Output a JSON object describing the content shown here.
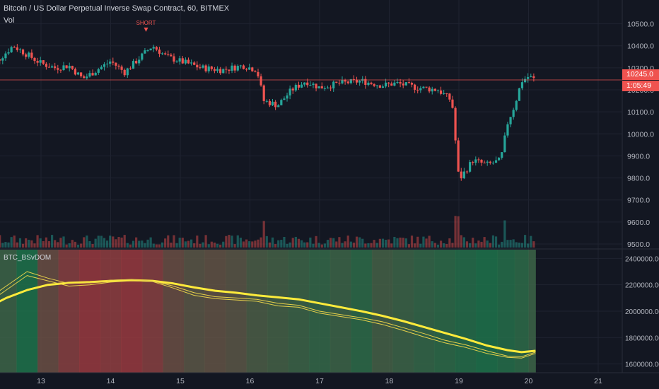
{
  "header": {
    "symbol_title": "Bitcoin / US Dollar Perpetual Inverse Swap Contract, 60, BITMEX",
    "volume_label": "Vol",
    "indicator_label": "BTC_BSvDOM"
  },
  "signal": {
    "label": "SHORT",
    "at": "14",
    "price": 10430
  },
  "price_tag": {
    "value": "10245.0",
    "countdown": "1:05:49"
  },
  "colors": {
    "background": "#131722",
    "grid": "#1f2330",
    "up": "#26a69a",
    "down": "#ef5350",
    "text": "#b2b5be",
    "fast_line": "#ffeb3b",
    "slow_line": "#e6d04a",
    "heat_red": "#a8333f",
    "heat_green": "#0f7a4c"
  },
  "chart_data": [
    {
      "type": "candlestick",
      "name": "price",
      "ylim": [
        9500,
        10550
      ],
      "y_ticks": [
        9500,
        9600,
        9700,
        9800,
        9900,
        10000,
        10100,
        10200,
        10300,
        10400,
        10500
      ],
      "x_ticks": [
        "13",
        "14",
        "15",
        "16",
        "17",
        "18",
        "19",
        "20",
        "21"
      ],
      "grid": true,
      "key_points": [
        {
          "x": "12.2",
          "y": 10300
        },
        {
          "x": "12.4",
          "y": 10340
        },
        {
          "x": "12.6",
          "y": 10400
        },
        {
          "x": "12.8",
          "y": 10360
        },
        {
          "x": "13.0",
          "y": 10320
        },
        {
          "x": "13.2",
          "y": 10300
        },
        {
          "x": "13.4",
          "y": 10310
        },
        {
          "x": "13.6",
          "y": 10250
        },
        {
          "x": "13.8",
          "y": 10290
        },
        {
          "x": "14.0",
          "y": 10330
        },
        {
          "x": "14.2",
          "y": 10280
        },
        {
          "x": "14.4",
          "y": 10340
        },
        {
          "x": "14.6",
          "y": 10400
        },
        {
          "x": "14.8",
          "y": 10350
        },
        {
          "x": "15.0",
          "y": 10330
        },
        {
          "x": "15.3",
          "y": 10300
        },
        {
          "x": "15.6",
          "y": 10290
        },
        {
          "x": "15.9",
          "y": 10310
        },
        {
          "x": "16.1",
          "y": 10290
        },
        {
          "x": "16.2",
          "y": 10150
        },
        {
          "x": "16.4",
          "y": 10130
        },
        {
          "x": "16.6",
          "y": 10200
        },
        {
          "x": "16.8",
          "y": 10240
        },
        {
          "x": "17.0",
          "y": 10210
        },
        {
          "x": "17.3",
          "y": 10230
        },
        {
          "x": "17.6",
          "y": 10240
        },
        {
          "x": "17.9",
          "y": 10220
        },
        {
          "x": "18.1",
          "y": 10230
        },
        {
          "x": "18.4",
          "y": 10210
        },
        {
          "x": "18.7",
          "y": 10200
        },
        {
          "x": "18.9",
          "y": 10150
        },
        {
          "x": "19.0",
          "y": 9790
        },
        {
          "x": "19.2",
          "y": 9880
        },
        {
          "x": "19.4",
          "y": 9860
        },
        {
          "x": "19.6",
          "y": 9880
        },
        {
          "x": "19.7",
          "y": 10050
        },
        {
          "x": "19.8",
          "y": 10130
        },
        {
          "x": "19.9",
          "y": 10240
        },
        {
          "x": "20.0",
          "y": 10260
        },
        {
          "x": "20.1",
          "y": 10245
        }
      ],
      "last_price": 10245.0
    },
    {
      "type": "area",
      "name": "BTC_BSvDOM",
      "ylim": [
        1550000,
        2450000
      ],
      "y_ticks": [
        1600000,
        1800000,
        2000000,
        2200000,
        2400000
      ],
      "x": [
        "12.2",
        "12.5",
        "12.8",
        "13.1",
        "13.4",
        "13.7",
        "14.0",
        "14.3",
        "14.6",
        "14.9",
        "15.2",
        "15.5",
        "15.8",
        "16.1",
        "16.4",
        "16.7",
        "17.0",
        "17.3",
        "17.6",
        "17.9",
        "18.2",
        "18.5",
        "18.8",
        "19.1",
        "19.4",
        "19.7",
        "19.9",
        "20.1"
      ],
      "series": [
        {
          "name": "",
          "role": "thick",
          "values": [
            2020000,
            2100000,
            2160000,
            2200000,
            2215000,
            2220000,
            2230000,
            2235000,
            2230000,
            2210000,
            2180000,
            2155000,
            2140000,
            2120000,
            2105000,
            2090000,
            2060000,
            2030000,
            2000000,
            1965000,
            1925000,
            1880000,
            1835000,
            1790000,
            1740000,
            1705000,
            1690000,
            1700000
          ]
        },
        {
          "name": "",
          "role": "thin",
          "values": [
            2080000,
            2190000,
            2300000,
            2250000,
            2210000,
            2215000,
            2235000,
            2240000,
            2230000,
            2190000,
            2140000,
            2110000,
            2100000,
            2090000,
            2060000,
            2045000,
            2000000,
            1975000,
            1950000,
            1920000,
            1875000,
            1830000,
            1780000,
            1745000,
            1700000,
            1660000,
            1655000,
            1690000
          ]
        },
        {
          "name": "",
          "role": "thin",
          "values": [
            2050000,
            2160000,
            2270000,
            2230000,
            2190000,
            2200000,
            2220000,
            2230000,
            2225000,
            2175000,
            2120000,
            2095000,
            2085000,
            2075000,
            2040000,
            2030000,
            1985000,
            1960000,
            1935000,
            1900000,
            1855000,
            1805000,
            1760000,
            1725000,
            1680000,
            1650000,
            1645000,
            1680000
          ]
        }
      ],
      "background_bias": [
        0.2,
        0.3,
        0.1,
        0.6,
        0.8,
        0.9,
        0.85,
        0.9,
        0.8,
        0.6,
        0.5,
        0.55,
        0.5,
        0.4,
        0.35,
        0.3,
        0.25,
        0.3,
        0.2,
        0.35,
        0.3,
        0.25,
        0.2,
        0.15,
        0.1,
        0.15,
        0.2,
        0.3
      ]
    }
  ]
}
